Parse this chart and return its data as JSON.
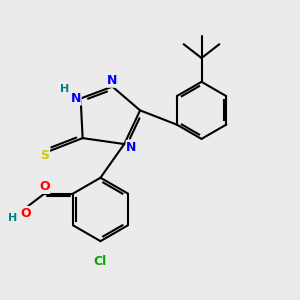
{
  "bg_color": "#ebebeb",
  "bond_color": "#000000",
  "bond_width": 1.5,
  "atom_colors": {
    "N": "#0000ff",
    "S": "#cccc00",
    "O": "#ff0000",
    "Cl": "#00aa00",
    "H_light": "#008080",
    "C": "#000000"
  },
  "font_size": 9,
  "fig_width": 3.0,
  "fig_height": 3.0,
  "dpi": 100
}
